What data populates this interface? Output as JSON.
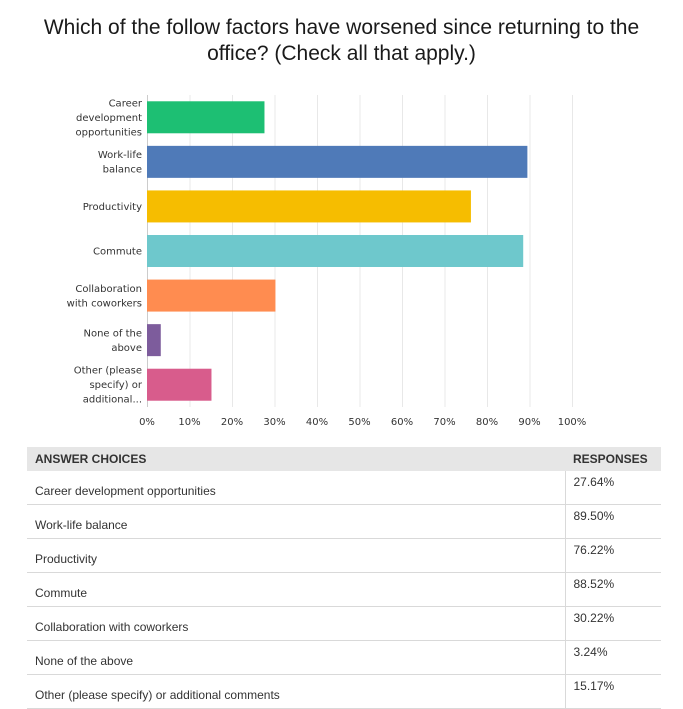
{
  "title_line1": "Which of the follow factors have worsened since returning to the",
  "title_line2": "office? (Check all that apply.)",
  "chart_data": {
    "type": "bar",
    "orientation": "horizontal",
    "categories": [
      [
        "Career",
        "development",
        "opportunities"
      ],
      [
        "Work-life",
        "balance"
      ],
      [
        "Productivity"
      ],
      [
        "Commute"
      ],
      [
        "Collaboration",
        "with coworkers"
      ],
      [
        "None of the",
        "above"
      ],
      [
        "Other (please",
        "specify) or",
        "additional..."
      ]
    ],
    "values": [
      27.64,
      89.5,
      76.22,
      88.52,
      30.22,
      3.24,
      15.17
    ],
    "colors": [
      "#1dbf73",
      "#4f7ab8",
      "#f6bd00",
      "#6ec8cc",
      "#ff8c50",
      "#7d5c9c",
      "#d85c8c"
    ],
    "xlim": [
      0,
      100
    ],
    "ticks": [
      "0%",
      "10%",
      "20%",
      "30%",
      "40%",
      "50%",
      "60%",
      "70%",
      "80%",
      "90%",
      "100%"
    ],
    "grid": true
  },
  "table": {
    "header_choice": "ANSWER CHOICES",
    "header_responses": "RESPONSES",
    "rows": [
      {
        "choice": "Career development opportunities",
        "response": "27.64%"
      },
      {
        "choice": "Work-life balance",
        "response": "89.50%"
      },
      {
        "choice": "Productivity",
        "response": "76.22%"
      },
      {
        "choice": "Commute",
        "response": "88.52%"
      },
      {
        "choice": "Collaboration with coworkers",
        "response": "30.22%"
      },
      {
        "choice": "None of the above",
        "response": "3.24%"
      },
      {
        "choice": "Other (please specify) or additional comments",
        "response": "15.17%"
      }
    ]
  }
}
